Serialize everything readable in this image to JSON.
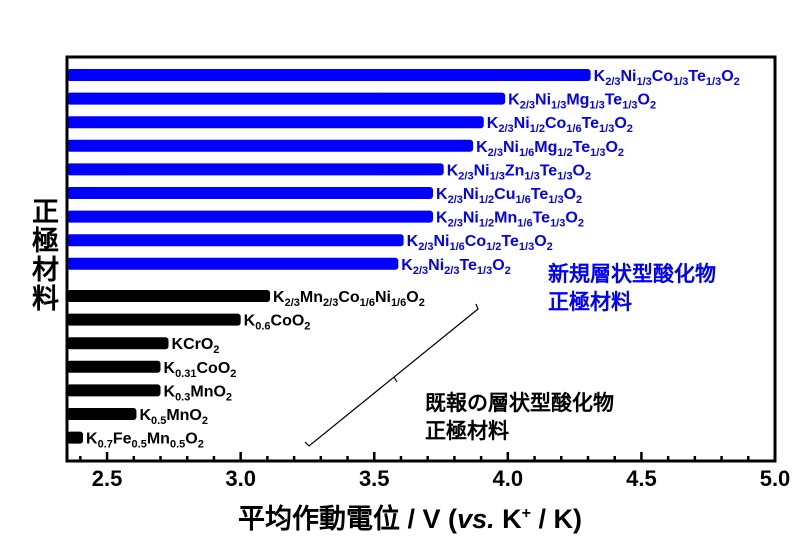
{
  "chart_data": {
    "type": "bar",
    "orientation": "horizontal",
    "title": "",
    "xlabel": {
      "main": "平均作動電位",
      "sep": " / V (",
      "vs": "vs.",
      "ref": " K",
      "sup": "+",
      "end": " / K)"
    },
    "ylabel": "正極材料",
    "xlim": [
      2.35,
      5.0
    ],
    "xticks": [
      "2.5",
      "3.0",
      "3.5",
      "4.0",
      "4.5",
      "5.0"
    ],
    "xtick_values": [
      2.5,
      3.0,
      3.5,
      4.0,
      4.5,
      5.0
    ],
    "grid": false,
    "colors": {
      "new": "#0000ff",
      "known": "#000000"
    },
    "series": [
      {
        "name": "新規層状型酸化物正極材料",
        "color": "#0000ff",
        "items": [
          {
            "label": [
              [
                "K",
                "2/3"
              ],
              [
                "Ni",
                "1/3"
              ],
              [
                "Co",
                "1/3"
              ],
              [
                "Te",
                "1/3"
              ],
              [
                "O",
                "2"
              ]
            ],
            "value": 4.31
          },
          {
            "label": [
              [
                "K",
                "2/3"
              ],
              [
                "Ni",
                "1/3"
              ],
              [
                "Mg",
                "1/3"
              ],
              [
                "Te",
                "1/3"
              ],
              [
                "O",
                "2"
              ]
            ],
            "value": 3.99
          },
          {
            "label": [
              [
                "K",
                "2/3"
              ],
              [
                "Ni",
                "1/2"
              ],
              [
                "Co",
                "1/6"
              ],
              [
                "Te",
                "1/3"
              ],
              [
                "O",
                "2"
              ]
            ],
            "value": 3.91
          },
          {
            "label": [
              [
                "K",
                "2/3"
              ],
              [
                "Ni",
                "1/6"
              ],
              [
                "Mg",
                "1/2"
              ],
              [
                "Te",
                "1/3"
              ],
              [
                "O",
                "2"
              ]
            ],
            "value": 3.87
          },
          {
            "label": [
              [
                "K",
                "2/3"
              ],
              [
                "Ni",
                "1/3"
              ],
              [
                "Zn",
                "1/3"
              ],
              [
                "Te",
                "1/3"
              ],
              [
                "O",
                "2"
              ]
            ],
            "value": 3.76
          },
          {
            "label": [
              [
                "K",
                "2/3"
              ],
              [
                "Ni",
                "1/2"
              ],
              [
                "Cu",
                "1/6"
              ],
              [
                "Te",
                "1/3"
              ],
              [
                "O",
                "2"
              ]
            ],
            "value": 3.72
          },
          {
            "label": [
              [
                "K",
                "2/3"
              ],
              [
                "Ni",
                "1/2"
              ],
              [
                "Mn",
                "1/6"
              ],
              [
                "Te",
                "1/3"
              ],
              [
                "O",
                "2"
              ]
            ],
            "value": 3.72
          },
          {
            "label": [
              [
                "K",
                "2/3"
              ],
              [
                "Ni",
                "1/6"
              ],
              [
                "Co",
                "1/2"
              ],
              [
                "Te",
                "1/3"
              ],
              [
                "O",
                "2"
              ]
            ],
            "value": 3.61
          },
          {
            "label": [
              [
                "K",
                "2/3"
              ],
              [
                "Ni",
                "2/3"
              ],
              [
                "Te",
                "1/3"
              ],
              [
                "O",
                "2"
              ]
            ],
            "value": 3.59
          }
        ]
      },
      {
        "name": "既報の層状型酸化物正極材料",
        "color": "#000000",
        "items": [
          {
            "label": [
              [
                "K",
                "2/3"
              ],
              [
                "Mn",
                "2/3"
              ],
              [
                "Co",
                "1/6"
              ],
              [
                "Ni",
                "1/6"
              ],
              [
                "O",
                "2"
              ]
            ],
            "value": 3.11
          },
          {
            "label": [
              [
                "K",
                "0.6"
              ],
              [
                "CoO",
                "2"
              ]
            ],
            "value": 3.0
          },
          {
            "label": [
              [
                "KCrO",
                "2"
              ]
            ],
            "value": 2.73
          },
          {
            "label": [
              [
                "K",
                "0.31"
              ],
              [
                "CoO",
                "2"
              ]
            ],
            "value": 2.7
          },
          {
            "label": [
              [
                "K",
                "0.3"
              ],
              [
                "MnO",
                "2"
              ]
            ],
            "value": 2.7
          },
          {
            "label": [
              [
                "K",
                "0.5"
              ],
              [
                "MnO",
                "2"
              ]
            ],
            "value": 2.61
          },
          {
            "label": [
              [
                "K",
                "0.7"
              ],
              [
                "Fe",
                "0.5"
              ],
              [
                "Mn",
                "0.5"
              ],
              [
                "O",
                "2"
              ]
            ],
            "value": 2.41
          }
        ]
      }
    ],
    "annotations": {
      "new": [
        "新規層状型酸化物",
        "正極材料"
      ],
      "known": [
        "既報の層状型酸化物",
        "正極材料"
      ]
    }
  }
}
